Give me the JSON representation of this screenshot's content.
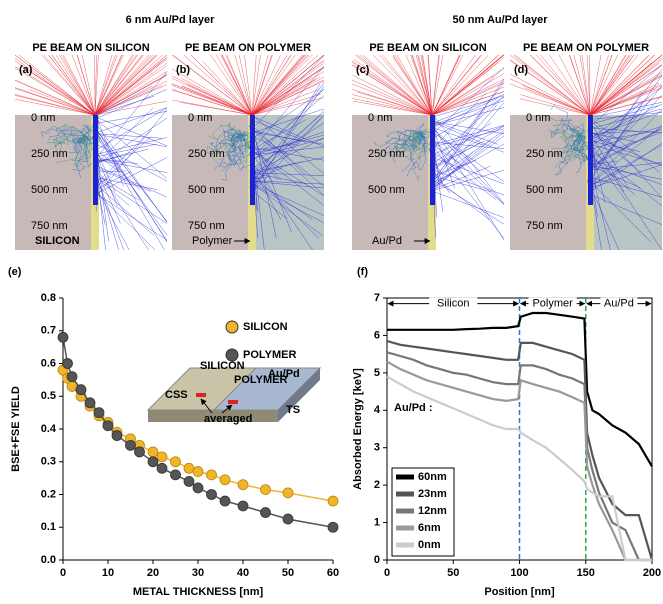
{
  "figure": {
    "columns": [
      {
        "title": "6 nm Au/Pd layer"
      },
      {
        "title": "50 nm Au/Pd layer"
      }
    ],
    "panels": [
      {
        "header": "PE BEAM ON SILICON",
        "letter": "(a)",
        "depths": [
          "0 nm",
          "250 nm",
          "500 nm",
          "750 nm"
        ],
        "material": "SILICON"
      },
      {
        "header": "PE BEAM ON POLYMER",
        "letter": "(b)",
        "depths": [
          "0 nm",
          "250 nm",
          "500 nm",
          "750 nm"
        ],
        "material": "Polymer"
      },
      {
        "header": "PE BEAM ON SILICON",
        "letter": "(c)",
        "depths": [
          "0 nm",
          "250 nm",
          "500 nm"
        ],
        "material": "Au/Pd"
      },
      {
        "header": "PE BEAM ON POLYMER",
        "letter": "(d)",
        "depths": [
          "0 nm",
          "250 nm",
          "500 nm",
          "750 nm"
        ]
      }
    ]
  },
  "chart_data": [
    {
      "type": "line",
      "letter": "(e)",
      "xlabel": "METAL THICKNESS [nm]",
      "ylabel": "BSE+FSE YIELD",
      "x": [
        0,
        1,
        2,
        4,
        6,
        8,
        10,
        12,
        15,
        17,
        20,
        22,
        25,
        28,
        30,
        33,
        36,
        40,
        45,
        50,
        60
      ],
      "series": [
        {
          "name": "SILICON",
          "color": "#f2b52a",
          "values": [
            0.58,
            0.555,
            0.53,
            0.5,
            0.47,
            0.44,
            0.42,
            0.39,
            0.37,
            0.35,
            0.33,
            0.315,
            0.3,
            0.28,
            0.27,
            0.26,
            0.245,
            0.23,
            0.215,
            0.205,
            0.18
          ]
        },
        {
          "name": "POLYMER",
          "color": "#555555",
          "values": [
            0.68,
            0.6,
            0.56,
            0.52,
            0.48,
            0.45,
            0.41,
            0.38,
            0.35,
            0.33,
            0.3,
            0.28,
            0.26,
            0.24,
            0.22,
            0.2,
            0.18,
            0.165,
            0.145,
            0.125,
            0.1
          ]
        }
      ],
      "xlim": [
        0,
        60
      ],
      "xticks": [
        0,
        10,
        20,
        30,
        40,
        50,
        60
      ],
      "ylim": [
        0,
        0.8
      ],
      "yticks": [
        {
          "value": 0,
          "label": "0.0"
        },
        0.1,
        0.2,
        0.3,
        0.4,
        0.5,
        0.6,
        0.7,
        0.8
      ],
      "inset_labels": [
        "CSS",
        "SILICON",
        "POLYMER",
        "Au/Pd",
        "TS",
        "averaged"
      ]
    },
    {
      "type": "line",
      "letter": "(f)",
      "xlabel": "Position [nm]",
      "ylabel": "Absorbed Energy [keV]",
      "legend_title": "Au/Pd :",
      "x": [
        0,
        10,
        20,
        30,
        40,
        50,
        60,
        70,
        80,
        90,
        99,
        101,
        110,
        120,
        130,
        140,
        149,
        151,
        155,
        160,
        170,
        180,
        190,
        200
      ],
      "series": [
        {
          "name": "60nm",
          "color": "#000000",
          "values": [
            6.15,
            6.15,
            6.15,
            6.15,
            6.15,
            6.15,
            6.17,
            6.18,
            6.2,
            6.2,
            6.25,
            6.5,
            6.6,
            6.6,
            6.55,
            6.5,
            6.45,
            4.5,
            4.0,
            3.9,
            3.6,
            3.4,
            3.1,
            2.5
          ]
        },
        {
          "name": "23nm",
          "color": "#555555",
          "values": [
            5.85,
            5.75,
            5.7,
            5.65,
            5.6,
            5.55,
            5.5,
            5.45,
            5.4,
            5.35,
            5.35,
            5.8,
            5.8,
            5.7,
            5.6,
            5.5,
            5.35,
            3.4,
            2.8,
            2.2,
            1.5,
            1.2,
            1.2,
            0
          ]
        },
        {
          "name": "12nm",
          "color": "#777777",
          "values": [
            5.55,
            5.45,
            5.35,
            5.2,
            5.1,
            5.0,
            4.95,
            4.85,
            4.75,
            4.7,
            4.7,
            5.2,
            5.2,
            5.1,
            4.95,
            4.85,
            4.7,
            3.0,
            2.4,
            1.8,
            1.0,
            0.8,
            0,
            0
          ]
        },
        {
          "name": "6nm",
          "color": "#999999",
          "values": [
            5.3,
            5.1,
            4.95,
            4.8,
            4.7,
            4.6,
            4.5,
            4.4,
            4.3,
            4.25,
            4.3,
            4.8,
            4.7,
            4.6,
            4.5,
            4.35,
            4.2,
            2.5,
            2.0,
            1.5,
            0.8,
            0,
            0,
            0
          ]
        },
        {
          "name": "0nm",
          "color": "#cccccc",
          "values": [
            4.9,
            4.7,
            4.5,
            4.35,
            4.2,
            4.05,
            3.9,
            3.75,
            3.6,
            3.5,
            3.5,
            3.4,
            3.2,
            3.0,
            2.7,
            2.4,
            2.1,
            1.9,
            1.8,
            1.7,
            1.7,
            0,
            0,
            0
          ]
        }
      ],
      "regions": [
        {
          "label": "Silicon",
          "from": 0,
          "to": 100
        },
        {
          "label": "Polymer",
          "from": 100,
          "to": 150
        },
        {
          "label": "Au/Pd",
          "from": 150,
          "to": 200
        }
      ],
      "dividers": [
        {
          "x": 100,
          "color": "#2f76d2"
        },
        {
          "x": 150,
          "color": "#2aa84a"
        }
      ],
      "xlim": [
        0,
        200
      ],
      "xticks": [
        0,
        50,
        100,
        150,
        200
      ],
      "ylim": [
        0,
        7
      ],
      "yticks": [
        0,
        1,
        2,
        3,
        4,
        5,
        6,
        7
      ]
    }
  ]
}
